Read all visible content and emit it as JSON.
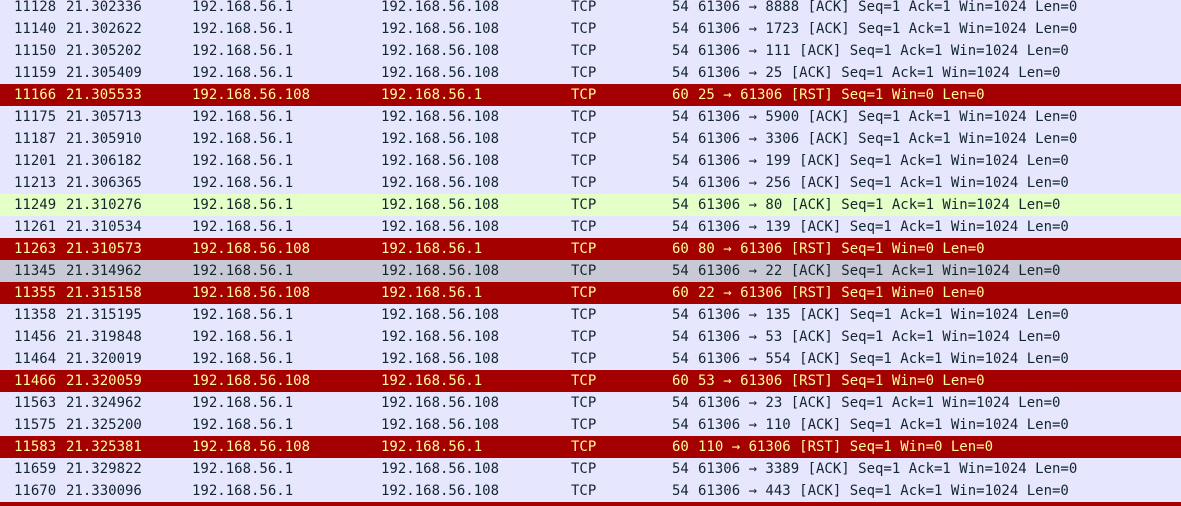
{
  "packets": [
    {
      "no": "11128",
      "time": "21.302336",
      "src": "192.168.56.1",
      "dst": "192.168.56.108",
      "proto": "TCP",
      "len": "54",
      "info": "61306 → 8888 [ACK] Seq=1 Ack=1 Win=1024 Len=0",
      "style": "normal"
    },
    {
      "no": "11140",
      "time": "21.302622",
      "src": "192.168.56.1",
      "dst": "192.168.56.108",
      "proto": "TCP",
      "len": "54",
      "info": "61306 → 1723 [ACK] Seq=1 Ack=1 Win=1024 Len=0",
      "style": "normal"
    },
    {
      "no": "11150",
      "time": "21.305202",
      "src": "192.168.56.1",
      "dst": "192.168.56.108",
      "proto": "TCP",
      "len": "54",
      "info": "61306 → 111 [ACK] Seq=1 Ack=1 Win=1024 Len=0",
      "style": "normal"
    },
    {
      "no": "11159",
      "time": "21.305409",
      "src": "192.168.56.1",
      "dst": "192.168.56.108",
      "proto": "TCP",
      "len": "54",
      "info": "61306 → 25 [ACK] Seq=1 Ack=1 Win=1024 Len=0",
      "style": "normal"
    },
    {
      "no": "11166",
      "time": "21.305533",
      "src": "192.168.56.108",
      "dst": "192.168.56.1",
      "proto": "TCP",
      "len": "60",
      "info": "25 → 61306 [RST] Seq=1 Win=0 Len=0",
      "style": "rst"
    },
    {
      "no": "11175",
      "time": "21.305713",
      "src": "192.168.56.1",
      "dst": "192.168.56.108",
      "proto": "TCP",
      "len": "54",
      "info": "61306 → 5900 [ACK] Seq=1 Ack=1 Win=1024 Len=0",
      "style": "normal"
    },
    {
      "no": "11187",
      "time": "21.305910",
      "src": "192.168.56.1",
      "dst": "192.168.56.108",
      "proto": "TCP",
      "len": "54",
      "info": "61306 → 3306 [ACK] Seq=1 Ack=1 Win=1024 Len=0",
      "style": "normal"
    },
    {
      "no": "11201",
      "time": "21.306182",
      "src": "192.168.56.1",
      "dst": "192.168.56.108",
      "proto": "TCP",
      "len": "54",
      "info": "61306 → 199 [ACK] Seq=1 Ack=1 Win=1024 Len=0",
      "style": "normal"
    },
    {
      "no": "11213",
      "time": "21.306365",
      "src": "192.168.56.1",
      "dst": "192.168.56.108",
      "proto": "TCP",
      "len": "54",
      "info": "61306 → 256 [ACK] Seq=1 Ack=1 Win=1024 Len=0",
      "style": "normal"
    },
    {
      "no": "11249",
      "time": "21.310276",
      "src": "192.168.56.1",
      "dst": "192.168.56.108",
      "proto": "TCP",
      "len": "54",
      "info": "61306 → 80 [ACK] Seq=1 Ack=1 Win=1024 Len=0",
      "style": "http"
    },
    {
      "no": "11261",
      "time": "21.310534",
      "src": "192.168.56.1",
      "dst": "192.168.56.108",
      "proto": "TCP",
      "len": "54",
      "info": "61306 → 139 [ACK] Seq=1 Ack=1 Win=1024 Len=0",
      "style": "normal"
    },
    {
      "no": "11263",
      "time": "21.310573",
      "src": "192.168.56.108",
      "dst": "192.168.56.1",
      "proto": "TCP",
      "len": "60",
      "info": "80 → 61306 [RST] Seq=1 Win=0 Len=0",
      "style": "rst"
    },
    {
      "no": "11345",
      "time": "21.314962",
      "src": "192.168.56.1",
      "dst": "192.168.56.108",
      "proto": "TCP",
      "len": "54",
      "info": "61306 → 22 [ACK] Seq=1 Ack=1 Win=1024 Len=0",
      "style": "selected"
    },
    {
      "no": "11355",
      "time": "21.315158",
      "src": "192.168.56.108",
      "dst": "192.168.56.1",
      "proto": "TCP",
      "len": "60",
      "info": "22 → 61306 [RST] Seq=1 Win=0 Len=0",
      "style": "rst"
    },
    {
      "no": "11358",
      "time": "21.315195",
      "src": "192.168.56.1",
      "dst": "192.168.56.108",
      "proto": "TCP",
      "len": "54",
      "info": "61306 → 135 [ACK] Seq=1 Ack=1 Win=1024 Len=0",
      "style": "normal"
    },
    {
      "no": "11456",
      "time": "21.319848",
      "src": "192.168.56.1",
      "dst": "192.168.56.108",
      "proto": "TCP",
      "len": "54",
      "info": "61306 → 53 [ACK] Seq=1 Ack=1 Win=1024 Len=0",
      "style": "normal"
    },
    {
      "no": "11464",
      "time": "21.320019",
      "src": "192.168.56.1",
      "dst": "192.168.56.108",
      "proto": "TCP",
      "len": "54",
      "info": "61306 → 554 [ACK] Seq=1 Ack=1 Win=1024 Len=0",
      "style": "normal"
    },
    {
      "no": "11466",
      "time": "21.320059",
      "src": "192.168.56.108",
      "dst": "192.168.56.1",
      "proto": "TCP",
      "len": "60",
      "info": "53 → 61306 [RST] Seq=1 Win=0 Len=0",
      "style": "rst"
    },
    {
      "no": "11563",
      "time": "21.324962",
      "src": "192.168.56.1",
      "dst": "192.168.56.108",
      "proto": "TCP",
      "len": "54",
      "info": "61306 → 23 [ACK] Seq=1 Ack=1 Win=1024 Len=0",
      "style": "normal"
    },
    {
      "no": "11575",
      "time": "21.325200",
      "src": "192.168.56.1",
      "dst": "192.168.56.108",
      "proto": "TCP",
      "len": "54",
      "info": "61306 → 110 [ACK] Seq=1 Ack=1 Win=1024 Len=0",
      "style": "normal"
    },
    {
      "no": "11583",
      "time": "21.325381",
      "src": "192.168.56.108",
      "dst": "192.168.56.1",
      "proto": "TCP",
      "len": "60",
      "info": "110 → 61306 [RST] Seq=1 Win=0 Len=0",
      "style": "rst"
    },
    {
      "no": "11659",
      "time": "21.329822",
      "src": "192.168.56.1",
      "dst": "192.168.56.108",
      "proto": "TCP",
      "len": "54",
      "info": "61306 → 3389 [ACK] Seq=1 Ack=1 Win=1024 Len=0",
      "style": "normal"
    },
    {
      "no": "11670",
      "time": "21.330096",
      "src": "192.168.56.1",
      "dst": "192.168.56.108",
      "proto": "TCP",
      "len": "54",
      "info": "61306 → 443 [ACK] Seq=1 Ack=1 Win=1024 Len=0",
      "style": "normal"
    },
    {
      "no": "",
      "time": "",
      "src": "",
      "dst": "",
      "proto": "",
      "len": "",
      "info": "",
      "style": "rst"
    }
  ],
  "colors": {
    "normal_bg": "#e7e6ff",
    "rst_bg": "#a40000",
    "rst_fg": "#fffc9c",
    "http_bg": "#e4ffc7",
    "selected_bg": "#c8c8d6",
    "text": "#12272e"
  }
}
